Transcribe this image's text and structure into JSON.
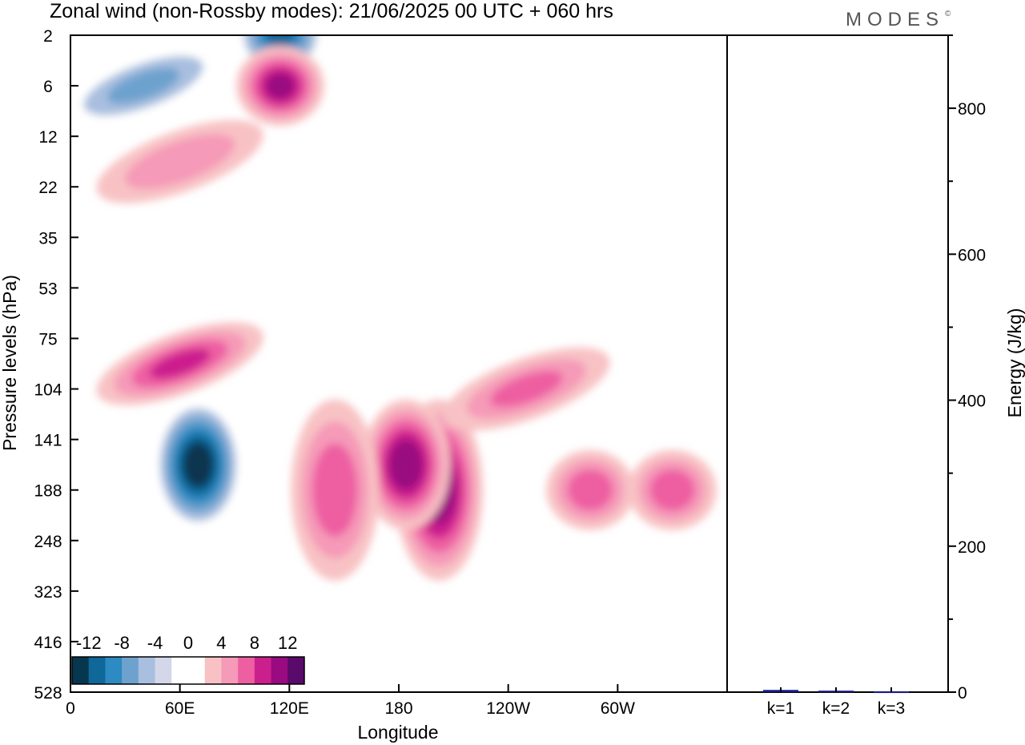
{
  "header": {
    "title": "Zonal wind (non-Rossby modes):  21/06/2025  00 UTC  + 060 hrs",
    "brand": "MODES",
    "brand_mark": "©"
  },
  "chart_data": [
    {
      "type": "heatmap",
      "title": "Zonal wind (non-Rossby modes):  21/06/2025  00 UTC  + 060 hrs",
      "xlabel": "Longitude",
      "ylabel": "Pressure levels (hPa)",
      "x_tick_labels": [
        "0",
        "60E",
        "120E",
        "180",
        "120W",
        "60W"
      ],
      "x_tick_degrees": [
        0,
        60,
        120,
        180,
        240,
        300
      ],
      "xlim_degrees": [
        0,
        360
      ],
      "y_tick_labels": [
        "2",
        "6",
        "12",
        "22",
        "35",
        "53",
        "75",
        "104",
        "141",
        "188",
        "248",
        "323",
        "416",
        "528"
      ],
      "y_scale": "level index (top = 2 hPa, bottom = 528 hPa)",
      "contour_levels": [
        -12,
        -10,
        -8,
        -6,
        -4,
        -2,
        2,
        4,
        6,
        8,
        10,
        12
      ],
      "colorbar_labels": [
        "-12",
        "-8",
        "-4",
        "0",
        "4",
        "8",
        "12"
      ],
      "colorbar_colors": [
        "#07364f",
        "#10679a",
        "#2d8ac2",
        "#6ea2ce",
        "#a9bfdf",
        "#d3d7e9",
        "#ffffff",
        "#ffffff",
        "#f8c2c4",
        "#f59ab8",
        "#ee5fa2",
        "#cc1f8e",
        "#9a0a80",
        "#5a0a6a"
      ],
      "features": [
        {
          "label": "negative core",
          "lon": 70,
          "level": "141-188",
          "value": -13
        },
        {
          "label": "negative band",
          "lon": 40,
          "level": "6",
          "value": -6
        },
        {
          "label": "negative patch",
          "lon": 115,
          "level": "2",
          "value": -10
        },
        {
          "label": "positive band",
          "lon": 60,
          "level": "75-104",
          "value": 8
        },
        {
          "label": "positive core",
          "lon": 202,
          "level": "141-248",
          "value": 11
        },
        {
          "label": "positive core",
          "lon": 184,
          "level": "141-188",
          "value": 11
        },
        {
          "label": "positive column",
          "lon": 145,
          "level": "141-248",
          "value": 7
        },
        {
          "label": "positive band",
          "lon": 250,
          "level": "104",
          "value": 6
        },
        {
          "label": "positive patch",
          "lon": 115,
          "level": "6",
          "value": 10
        },
        {
          "label": "positive band",
          "lon": 60,
          "level": "12-22",
          "value": 5
        },
        {
          "label": "positive column",
          "lon": 285,
          "level": "188",
          "value": 7
        },
        {
          "label": "positive column",
          "lon": 330,
          "level": "188",
          "value": 7
        }
      ]
    },
    {
      "type": "bar",
      "ylabel": "Energy (J/kg)",
      "categories": [
        "k=1",
        "k=2",
        "k=3"
      ],
      "values": [
        3,
        2,
        1
      ],
      "ylim": [
        0,
        900
      ],
      "y_tick_labels": [
        "0",
        "200",
        "400",
        "600",
        "800"
      ],
      "y_ticks": [
        0,
        200,
        400,
        600,
        800
      ],
      "bar_color": "#1a1a8a"
    }
  ]
}
